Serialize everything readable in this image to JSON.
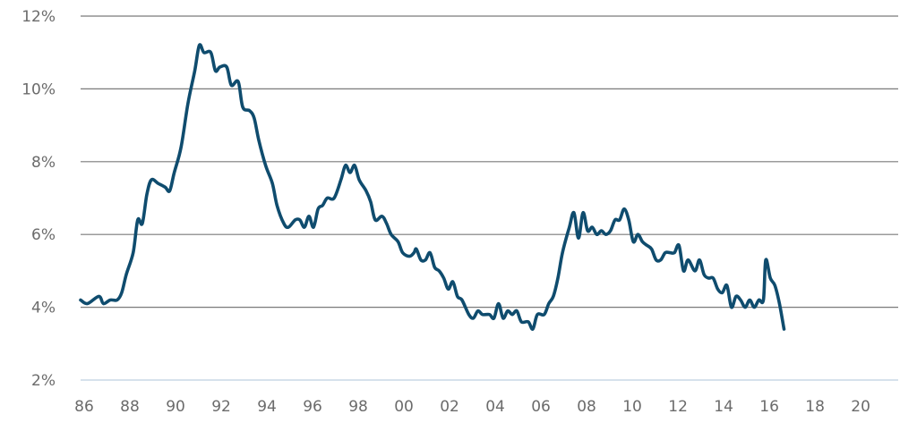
{
  "chart_data": {
    "type": "line",
    "title": "",
    "xlabel": "",
    "ylabel": "",
    "x_tick_labels": [
      "86",
      "88",
      "90",
      "92",
      "94",
      "96",
      "98",
      "00",
      "02",
      "04",
      "06",
      "08",
      "10",
      "12",
      "14",
      "16",
      "18",
      "20"
    ],
    "y_tick_labels": [
      "2%",
      "4%",
      "6%",
      "8%",
      "10%",
      "12%"
    ],
    "y_ticks": [
      2,
      4,
      6,
      8,
      10,
      12
    ],
    "ylim": [
      2,
      12
    ],
    "xlim": [
      1986.0,
      2021.8
    ],
    "grid": "horizontal",
    "series": [
      {
        "color": "#0f4c6e",
        "points": [
          [
            1986.0,
            4.2
          ],
          [
            1986.3,
            4.1
          ],
          [
            1986.8,
            4.3
          ],
          [
            1987.0,
            4.1
          ],
          [
            1987.3,
            4.2
          ],
          [
            1987.6,
            4.2
          ],
          [
            1987.8,
            4.4
          ],
          [
            1988.0,
            4.9
          ],
          [
            1988.3,
            5.5
          ],
          [
            1988.5,
            6.4
          ],
          [
            1988.7,
            6.3
          ],
          [
            1988.9,
            7.1
          ],
          [
            1989.1,
            7.5
          ],
          [
            1989.4,
            7.4
          ],
          [
            1989.7,
            7.3
          ],
          [
            1989.9,
            7.2
          ],
          [
            1990.1,
            7.7
          ],
          [
            1990.4,
            8.4
          ],
          [
            1990.7,
            9.6
          ],
          [
            1991.0,
            10.5
          ],
          [
            1991.2,
            11.2
          ],
          [
            1991.4,
            11.0
          ],
          [
            1991.7,
            11.0
          ],
          [
            1991.9,
            10.5
          ],
          [
            1992.1,
            10.6
          ],
          [
            1992.4,
            10.6
          ],
          [
            1992.6,
            10.1
          ],
          [
            1992.9,
            10.2
          ],
          [
            1993.1,
            9.5
          ],
          [
            1993.4,
            9.4
          ],
          [
            1993.6,
            9.2
          ],
          [
            1993.8,
            8.6
          ],
          [
            1994.1,
            7.9
          ],
          [
            1994.4,
            7.4
          ],
          [
            1994.6,
            6.8
          ],
          [
            1994.9,
            6.3
          ],
          [
            1995.1,
            6.2
          ],
          [
            1995.4,
            6.4
          ],
          [
            1995.6,
            6.4
          ],
          [
            1995.8,
            6.2
          ],
          [
            1996.0,
            6.5
          ],
          [
            1996.2,
            6.2
          ],
          [
            1996.4,
            6.7
          ],
          [
            1996.6,
            6.8
          ],
          [
            1996.8,
            7.0
          ],
          [
            1997.1,
            7.0
          ],
          [
            1997.4,
            7.5
          ],
          [
            1997.6,
            7.9
          ],
          [
            1997.8,
            7.7
          ],
          [
            1998.0,
            7.9
          ],
          [
            1998.2,
            7.5
          ],
          [
            1998.5,
            7.2
          ],
          [
            1998.7,
            6.9
          ],
          [
            1998.9,
            6.4
          ],
          [
            1999.2,
            6.5
          ],
          [
            1999.4,
            6.3
          ],
          [
            1999.6,
            6.0
          ],
          [
            1999.9,
            5.8
          ],
          [
            2000.1,
            5.5
          ],
          [
            2000.4,
            5.4
          ],
          [
            2000.6,
            5.5
          ],
          [
            2000.7,
            5.6
          ],
          [
            2000.9,
            5.3
          ],
          [
            2001.1,
            5.3
          ],
          [
            2001.3,
            5.5
          ],
          [
            2001.5,
            5.1
          ],
          [
            2001.7,
            5.0
          ],
          [
            2001.9,
            4.8
          ],
          [
            2002.1,
            4.5
          ],
          [
            2002.3,
            4.7
          ],
          [
            2002.5,
            4.3
          ],
          [
            2002.7,
            4.2
          ],
          [
            2003.0,
            3.8
          ],
          [
            2003.2,
            3.7
          ],
          [
            2003.4,
            3.9
          ],
          [
            2003.6,
            3.8
          ],
          [
            2003.9,
            3.8
          ],
          [
            2004.1,
            3.7
          ],
          [
            2004.3,
            4.1
          ],
          [
            2004.5,
            3.7
          ],
          [
            2004.7,
            3.9
          ],
          [
            2004.9,
            3.8
          ],
          [
            2005.1,
            3.9
          ],
          [
            2005.3,
            3.6
          ],
          [
            2005.6,
            3.6
          ],
          [
            2005.8,
            3.4
          ],
          [
            2006.0,
            3.8
          ],
          [
            2006.3,
            3.8
          ],
          [
            2006.5,
            4.1
          ],
          [
            2006.7,
            4.3
          ],
          [
            2006.9,
            4.8
          ],
          [
            2007.1,
            5.5
          ],
          [
            2007.4,
            6.2
          ],
          [
            2007.6,
            6.6
          ],
          [
            2007.8,
            5.9
          ],
          [
            2008.0,
            6.6
          ],
          [
            2008.2,
            6.1
          ],
          [
            2008.4,
            6.2
          ],
          [
            2008.6,
            6.0
          ],
          [
            2008.8,
            6.1
          ],
          [
            2009.0,
            6.0
          ],
          [
            2009.2,
            6.1
          ],
          [
            2009.4,
            6.4
          ],
          [
            2009.6,
            6.4
          ],
          [
            2009.8,
            6.7
          ],
          [
            2010.0,
            6.4
          ],
          [
            2010.2,
            5.8
          ],
          [
            2010.4,
            6.0
          ],
          [
            2010.6,
            5.8
          ],
          [
            2010.8,
            5.7
          ],
          [
            2011.0,
            5.6
          ],
          [
            2011.2,
            5.3
          ],
          [
            2011.4,
            5.3
          ],
          [
            2011.6,
            5.5
          ],
          [
            2011.8,
            5.5
          ],
          [
            2012.0,
            5.5
          ],
          [
            2012.2,
            5.7
          ],
          [
            2012.4,
            5.0
          ],
          [
            2012.6,
            5.3
          ],
          [
            2012.9,
            5.0
          ],
          [
            2013.1,
            5.3
          ],
          [
            2013.3,
            4.9
          ],
          [
            2013.5,
            4.8
          ],
          [
            2013.7,
            4.8
          ],
          [
            2013.9,
            4.5
          ],
          [
            2014.1,
            4.4
          ],
          [
            2014.3,
            4.6
          ],
          [
            2014.5,
            4.0
          ],
          [
            2014.7,
            4.3
          ],
          [
            2014.9,
            4.2
          ],
          [
            2015.1,
            4.0
          ],
          [
            2015.3,
            4.2
          ],
          [
            2015.5,
            4.0
          ],
          [
            2015.7,
            4.2
          ],
          [
            2015.9,
            4.2
          ],
          [
            2016.0,
            5.3
          ],
          [
            2016.2,
            4.8
          ],
          [
            2016.4,
            4.6
          ],
          [
            2016.6,
            4.1
          ],
          [
            2016.8,
            3.4
          ]
        ]
      }
    ]
  }
}
